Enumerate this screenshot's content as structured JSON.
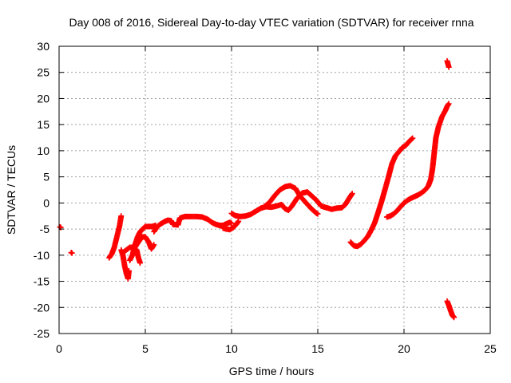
{
  "chart_data": {
    "type": "scatter",
    "title": "Day 008 of 2016, Sidereal Day-to-day VTEC variation (SDTVAR) for receiver rnna",
    "xlabel": "GPS time / hours",
    "ylabel": "SDTVAR / TECUs",
    "xlim": [
      0,
      25
    ],
    "ylim": [
      -25,
      30
    ],
    "xticks": [
      0,
      5,
      10,
      15,
      20,
      25
    ],
    "yticks": [
      -25,
      -20,
      -15,
      -10,
      -5,
      0,
      5,
      10,
      15,
      20,
      25,
      30
    ],
    "grid": true,
    "marker": "+",
    "color": "#ff0000",
    "series": [
      {
        "name": "SDTVAR",
        "segments": [
          [
            [
              0.05,
              -4.6
            ],
            [
              0.1,
              -4.7
            ]
          ],
          [
            [
              0.7,
              -9.5
            ],
            [
              0.75,
              -9.6
            ]
          ],
          [
            [
              2.9,
              -10.5
            ],
            [
              3.05,
              -9.8
            ],
            [
              3.2,
              -8.5
            ],
            [
              3.35,
              -6.5
            ],
            [
              3.5,
              -4.5
            ],
            [
              3.6,
              -2.5
            ]
          ],
          [
            [
              3.6,
              -9
            ],
            [
              3.7,
              -10
            ],
            [
              3.8,
              -12
            ],
            [
              3.9,
              -13.5
            ],
            [
              4.0,
              -14.5
            ],
            [
              4.05,
              -13
            ]
          ],
          [
            [
              3.7,
              -9.5
            ],
            [
              3.9,
              -9
            ],
            [
              4.1,
              -8.5
            ],
            [
              4.3,
              -8.5
            ],
            [
              4.5,
              -9
            ],
            [
              4.6,
              -10.5
            ],
            [
              4.7,
              -11.5
            ]
          ],
          [
            [
              4.1,
              -11
            ],
            [
              4.25,
              -10
            ],
            [
              4.4,
              -8
            ],
            [
              4.55,
              -6.5
            ],
            [
              4.7,
              -5.5
            ],
            [
              4.85,
              -5
            ],
            [
              5.0,
              -4.5
            ],
            [
              5.2,
              -4.5
            ],
            [
              5.4,
              -4.5
            ],
            [
              5.6,
              -4.3
            ]
          ],
          [
            [
              4.4,
              -8.5
            ],
            [
              4.6,
              -7.5
            ],
            [
              4.8,
              -6.5
            ],
            [
              5.0,
              -6.5
            ],
            [
              5.2,
              -7.5
            ],
            [
              5.35,
              -8.8
            ],
            [
              5.5,
              -8
            ]
          ],
          [
            [
              5.5,
              -5.5
            ],
            [
              5.7,
              -4.5
            ],
            [
              5.9,
              -4
            ],
            [
              6.1,
              -3.6
            ],
            [
              6.3,
              -3.3
            ],
            [
              6.5,
              -3.4
            ],
            [
              6.6,
              -4.1
            ],
            [
              6.9,
              -4.2
            ],
            [
              7.0,
              -2.9
            ],
            [
              7.3,
              -2.6
            ],
            [
              7.6,
              -2.6
            ],
            [
              8.0,
              -2.6
            ],
            [
              8.3,
              -2.7
            ],
            [
              8.6,
              -3.1
            ],
            [
              8.9,
              -3.8
            ],
            [
              9.1,
              -4.1
            ],
            [
              9.3,
              -4.3
            ],
            [
              9.5,
              -4.3
            ],
            [
              9.7,
              -4.0
            ],
            [
              9.9,
              -3.7
            ],
            [
              10.0,
              -3.9
            ]
          ],
          [
            [
              9.5,
              -4.8
            ],
            [
              9.7,
              -5.0
            ],
            [
              9.9,
              -5.1
            ],
            [
              10.1,
              -4.7
            ],
            [
              10.3,
              -4.0
            ],
            [
              10.4,
              -3.5
            ]
          ],
          [
            [
              10.0,
              -2.0
            ],
            [
              10.2,
              -2.4
            ],
            [
              10.5,
              -2.6
            ],
            [
              10.8,
              -2.5
            ],
            [
              11.1,
              -2.2
            ],
            [
              11.4,
              -1.6
            ],
            [
              11.7,
              -1.0
            ],
            [
              12.0,
              -0.7
            ],
            [
              12.3,
              -0.8
            ],
            [
              12.6,
              -0.6
            ],
            [
              12.9,
              -0.3
            ],
            [
              13.1,
              -1.1
            ],
            [
              13.3,
              -1.4
            ],
            [
              13.5,
              -0.6
            ],
            [
              13.8,
              0.9
            ],
            [
              14.1,
              1.9
            ],
            [
              14.4,
              2.1
            ],
            [
              14.6,
              1.5
            ],
            [
              14.9,
              0.6
            ],
            [
              15.2,
              -0.6
            ],
            [
              15.5,
              -0.9
            ],
            [
              15.8,
              -1.2
            ],
            [
              16.1,
              -1.0
            ],
            [
              16.4,
              -0.9
            ],
            [
              16.6,
              -0.3
            ],
            [
              16.8,
              0.8
            ],
            [
              17.0,
              1.8
            ]
          ],
          [
            [
              11.9,
              -0.7
            ],
            [
              12.2,
              0.1
            ],
            [
              12.5,
              1.4
            ],
            [
              12.8,
              2.5
            ],
            [
              13.1,
              3.1
            ],
            [
              13.4,
              3.3
            ],
            [
              13.7,
              2.8
            ],
            [
              14.0,
              1.2
            ],
            [
              14.3,
              0.1
            ],
            [
              14.6,
              -1.0
            ],
            [
              14.9,
              -1.9
            ],
            [
              15.0,
              -2.1
            ]
          ],
          [
            [
              16.9,
              -7.5
            ],
            [
              17.1,
              -8.2
            ],
            [
              17.3,
              -8.3
            ],
            [
              17.5,
              -7.9
            ],
            [
              17.7,
              -7.2
            ],
            [
              17.9,
              -6.4
            ],
            [
              18.1,
              -5.2
            ],
            [
              18.3,
              -3.8
            ],
            [
              18.5,
              -1.8
            ],
            [
              18.7,
              0.3
            ],
            [
              18.9,
              2.6
            ],
            [
              19.1,
              5.0
            ],
            [
              19.3,
              7.5
            ],
            [
              19.5,
              9.0
            ],
            [
              19.7,
              9.8
            ],
            [
              19.9,
              10.6
            ],
            [
              20.1,
              11.0
            ],
            [
              20.3,
              11.8
            ],
            [
              20.5,
              12.4
            ]
          ],
          [
            [
              19.0,
              -2.7
            ],
            [
              19.2,
              -2.5
            ],
            [
              19.4,
              -2.1
            ],
            [
              19.6,
              -1.5
            ],
            [
              19.8,
              -0.7
            ],
            [
              20.0,
              0.0
            ],
            [
              20.2,
              0.5
            ],
            [
              20.4,
              0.9
            ],
            [
              20.6,
              1.2
            ],
            [
              20.8,
              1.5
            ],
            [
              21.0,
              1.9
            ],
            [
              21.2,
              2.4
            ],
            [
              21.4,
              3.2
            ],
            [
              21.55,
              4.5
            ],
            [
              21.65,
              6.5
            ],
            [
              21.75,
              9.5
            ],
            [
              21.85,
              12.5
            ],
            [
              22.0,
              14.6
            ],
            [
              22.2,
              16.5
            ],
            [
              22.4,
              17.7
            ],
            [
              22.5,
              18.5
            ],
            [
              22.6,
              19.0
            ]
          ],
          [
            [
              22.5,
              27.2
            ],
            [
              22.55,
              26.6
            ],
            [
              22.6,
              26.0
            ]
          ],
          [
            [
              22.5,
              -18.8
            ],
            [
              22.6,
              -19.6
            ],
            [
              22.7,
              -20.6
            ],
            [
              22.8,
              -21.5
            ],
            [
              22.9,
              -21.9
            ]
          ]
        ]
      }
    ]
  }
}
